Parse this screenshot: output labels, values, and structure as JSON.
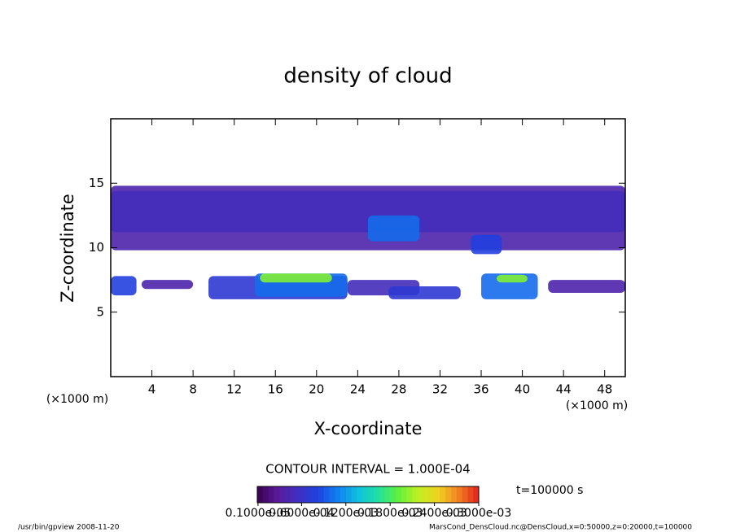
{
  "chart_data": {
    "type": "contour",
    "title": "density of cloud",
    "x_label": "X-coordinate",
    "y_label": "Z-coordinate",
    "x_unit": "(×1000 m)",
    "y_unit": "(×1000 m)",
    "xlim": [
      0,
      50
    ],
    "ylim": [
      0,
      20
    ],
    "xticks": [
      4,
      8,
      12,
      16,
      20,
      24,
      28,
      32,
      36,
      40,
      44,
      48
    ],
    "yticks": [
      5,
      10,
      15
    ],
    "regions": [
      {
        "x": [
          0,
          50
        ],
        "z": [
          9.8,
          14.8
        ],
        "value": 4e-05
      },
      {
        "x": [
          0,
          50
        ],
        "z": [
          11.2,
          14.4
        ],
        "value": 5e-05
      },
      {
        "x": [
          25,
          30
        ],
        "z": [
          10.5,
          12.5
        ],
        "value": 0.0001
      },
      {
        "x": [
          35,
          38
        ],
        "z": [
          9.5,
          11
        ],
        "value": 8e-05
      },
      {
        "x": [
          0,
          2.5
        ],
        "z": [
          6.3,
          7.8
        ],
        "value": 8e-05
      },
      {
        "x": [
          3,
          8
        ],
        "z": [
          6.8,
          7.5
        ],
        "value": 4e-05
      },
      {
        "x": [
          9.5,
          23
        ],
        "z": [
          6,
          7.8
        ],
        "value": 7e-05
      },
      {
        "x": [
          14,
          23
        ],
        "z": [
          6.2,
          8
        ],
        "value": 0.0001
      },
      {
        "x": [
          14.5,
          21.5
        ],
        "z": [
          7.3,
          8
        ],
        "value": 0.0002
      },
      {
        "x": [
          23,
          30
        ],
        "z": [
          6.3,
          7.5
        ],
        "value": 5e-05
      },
      {
        "x": [
          27,
          34
        ],
        "z": [
          6,
          7
        ],
        "value": 7e-05
      },
      {
        "x": [
          36,
          41.5
        ],
        "z": [
          6,
          8
        ],
        "value": 0.0001
      },
      {
        "x": [
          37.5,
          40.5
        ],
        "z": [
          7.3,
          7.9
        ],
        "value": 0.0002
      },
      {
        "x": [
          42.5,
          50
        ],
        "z": [
          6.5,
          7.5
        ],
        "value": 4e-05
      }
    ],
    "contour_interval": "CONTOUR INTERVAL = 1.000E-04",
    "time_label": "t=100000 s",
    "clim": [
      0,
      0.0003
    ],
    "colors": [
      "#3a0050",
      "#5a1a9a",
      "#4030c0",
      "#2040e0",
      "#1080f0",
      "#10c0e0",
      "#20e0a0",
      "#60f040",
      "#c0f020",
      "#f0d020",
      "#f08020",
      "#e02020"
    ],
    "colorbar_ticks": [
      {
        "value": 1e-06,
        "label": "0.1000e-05"
      },
      {
        "value": 6e-05,
        "label": "0.6000e-04"
      },
      {
        "value": 0.00012,
        "label": "0.1200e-03"
      },
      {
        "value": 0.00018,
        "label": "0.1800e-03"
      },
      {
        "value": 0.00024,
        "label": "0.2400e-03"
      },
      {
        "value": 0.0003,
        "label": "0.3000e-03"
      }
    ],
    "footer_left": "/usr/bin/gpview  2008-11-20",
    "footer_right": "MarsCond_DensCloud.nc@DensCloud,x=0:50000,z=0:20000,t=100000"
  }
}
